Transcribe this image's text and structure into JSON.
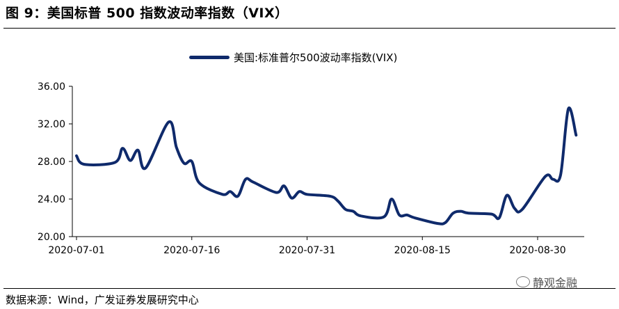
{
  "figure": {
    "title": "图 9：美国标普 500 指数波动率指数（VIX）",
    "source": "数据来源：Wind，广发证券发展研究中心",
    "watermark": "静观金融"
  },
  "colors": {
    "line": "#0f2a6b",
    "axis": "#000000"
  },
  "chart_data": {
    "type": "line",
    "title": "",
    "xlabel": "",
    "ylabel": "",
    "ylim": [
      20,
      36
    ],
    "yticks": [
      "20.00",
      "24.00",
      "28.00",
      "32.00",
      "36.00"
    ],
    "xtick_labels": [
      "2020-07-01",
      "2020-07-16",
      "2020-07-31",
      "2020-08-15",
      "2020-08-30"
    ],
    "grid": false,
    "legend": "top-center",
    "series": [
      {
        "name": "美国:标准普尔500波动率指数(VIX)",
        "x": [
          "2020-07-01",
          "2020-07-02",
          "2020-07-06",
          "2020-07-07",
          "2020-07-08",
          "2020-07-09",
          "2020-07-10",
          "2020-07-13",
          "2020-07-14",
          "2020-07-15",
          "2020-07-16",
          "2020-07-17",
          "2020-07-20",
          "2020-07-21",
          "2020-07-22",
          "2020-07-23",
          "2020-07-24",
          "2020-07-27",
          "2020-07-28",
          "2020-07-29",
          "2020-07-30",
          "2020-07-31",
          "2020-08-03",
          "2020-08-04",
          "2020-08-05",
          "2020-08-06",
          "2020-08-07",
          "2020-08-10",
          "2020-08-11",
          "2020-08-12",
          "2020-08-13",
          "2020-08-14",
          "2020-08-17",
          "2020-08-18",
          "2020-08-19",
          "2020-08-20",
          "2020-08-21",
          "2020-08-24",
          "2020-08-25",
          "2020-08-26",
          "2020-08-27",
          "2020-08-28",
          "2020-08-31",
          "2020-09-01",
          "2020-09-02",
          "2020-09-03",
          "2020-09-04"
        ],
        "values": [
          28.6,
          27.7,
          27.9,
          29.4,
          28.1,
          29.2,
          27.3,
          32.2,
          29.5,
          27.8,
          28.0,
          25.7,
          24.5,
          24.8,
          24.3,
          26.1,
          25.8,
          24.7,
          25.4,
          24.1,
          24.8,
          24.5,
          24.3,
          23.8,
          22.9,
          22.7,
          22.2,
          22.1,
          24.0,
          22.3,
          22.3,
          22.0,
          21.4,
          21.5,
          22.5,
          22.7,
          22.5,
          22.4,
          22.0,
          24.4,
          23.0,
          22.9,
          26.4,
          26.1,
          26.6,
          33.6,
          30.8
        ]
      }
    ]
  }
}
